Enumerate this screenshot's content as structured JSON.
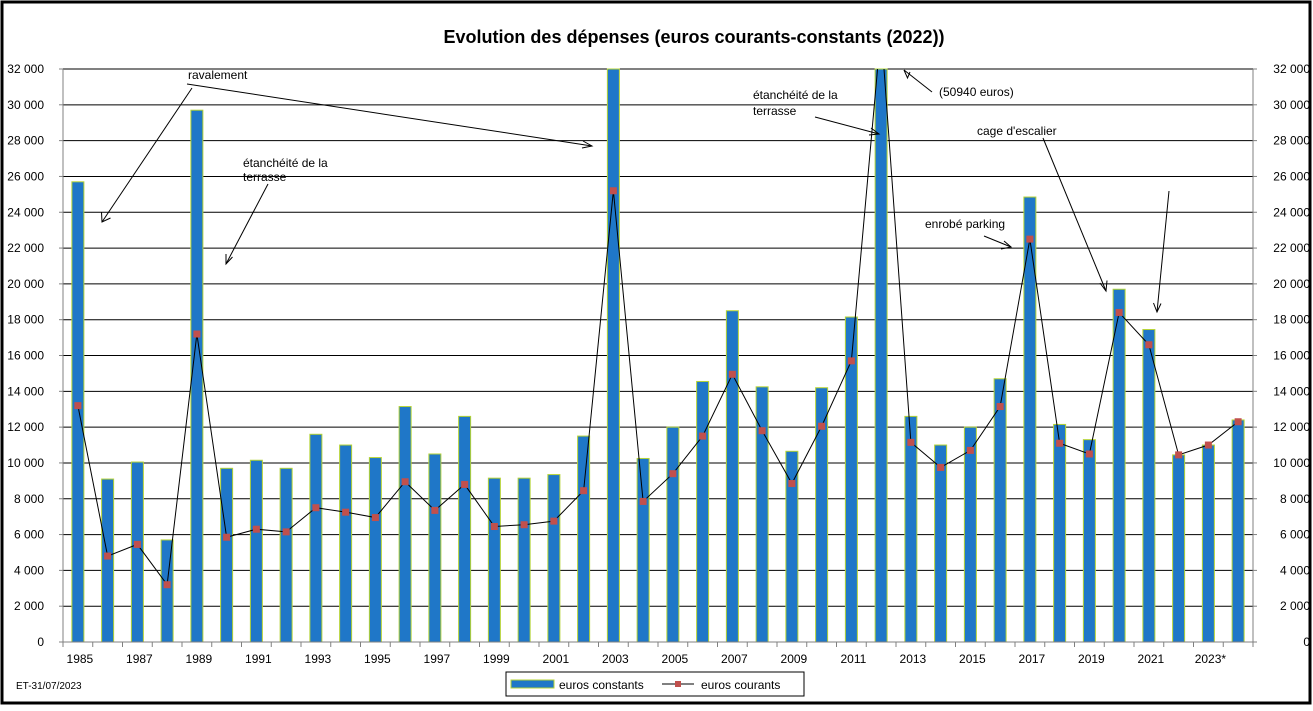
{
  "chart_data": {
    "type": "bar",
    "title": "Evolution des dépenses (euros courants-constants (2022))",
    "xlabel": "",
    "ylabel": "",
    "ylim": [
      0,
      32000
    ],
    "y_ticks": [
      "0",
      "2 000",
      "4 000",
      "6 000",
      "8 000",
      "10 000",
      "12 000",
      "14 000",
      "16 000",
      "18 000",
      "20 000",
      "22 000",
      "24 000",
      "26 000",
      "28 000",
      "30 000",
      "32 000"
    ],
    "y_tick_values": [
      0,
      2000,
      4000,
      6000,
      8000,
      10000,
      12000,
      14000,
      16000,
      18000,
      20000,
      22000,
      24000,
      26000,
      28000,
      30000,
      32000
    ],
    "categories": [
      "1985",
      "1986",
      "1987",
      "1988",
      "1989",
      "1990",
      "1991",
      "1992",
      "1993",
      "1994",
      "1995",
      "1996",
      "1997",
      "1998",
      "1999",
      "2000",
      "2001",
      "2002",
      "2003",
      "2004",
      "2005",
      "2006",
      "2007",
      "2008",
      "2009",
      "2010",
      "2011",
      "2012",
      "2013",
      "2014",
      "2015",
      "2016",
      "2017",
      "2018",
      "2019",
      "2020",
      "2021",
      "2022",
      "2023*",
      "2024"
    ],
    "x_tick_labels": [
      "1985",
      "1987",
      "1989",
      "1991",
      "1993",
      "1995",
      "1997",
      "1999",
      "2001",
      "2003",
      "2005",
      "2007",
      "2009",
      "2011",
      "2013",
      "2015",
      "2017",
      "2019",
      "2021",
      "2023*"
    ],
    "grid": true,
    "legend_position": "bottom",
    "series": [
      {
        "name": "euros constants",
        "kind": "bar",
        "color": "#1f77c8",
        "values": [
          25700,
          9100,
          10050,
          5700,
          29700,
          9700,
          10150,
          9700,
          11600,
          11000,
          10300,
          13150,
          10500,
          12600,
          9150,
          9150,
          9350,
          11500,
          32000,
          10250,
          12000,
          14550,
          18500,
          14250,
          10650,
          14200,
          18150,
          32000,
          12600,
          11000,
          12000,
          14700,
          24850,
          12150,
          11300,
          19700,
          17450,
          10450,
          11000,
          12400
        ]
      },
      {
        "name": "euros courants",
        "kind": "line",
        "color": "#c0504d",
        "values": [
          13200,
          4800,
          5450,
          3200,
          17200,
          5850,
          6300,
          6150,
          7500,
          7250,
          6950,
          8950,
          7350,
          8800,
          6450,
          6550,
          6750,
          8450,
          25200,
          7850,
          9400,
          11500,
          14950,
          11800,
          8850,
          12050,
          15700,
          50940,
          11150,
          9750,
          10700,
          13150,
          22500,
          11100,
          10500,
          18400,
          16600,
          10450,
          11000,
          12300
        ]
      }
    ],
    "annotations": [
      {
        "text_lines": [
          "ravalement"
        ]
      },
      {
        "text_lines": [
          "étanchéité de la",
          "terrasse"
        ]
      },
      {
        "text_lines": [
          "étanchéité de la",
          "terrasse"
        ]
      },
      {
        "text_lines": [
          "(50940 euros)"
        ]
      },
      {
        "text_lines": [
          "cage d'escalier"
        ]
      },
      {
        "text_lines": [
          "enrobé parking"
        ]
      }
    ]
  },
  "footer_text": "ET-31/07/2023"
}
